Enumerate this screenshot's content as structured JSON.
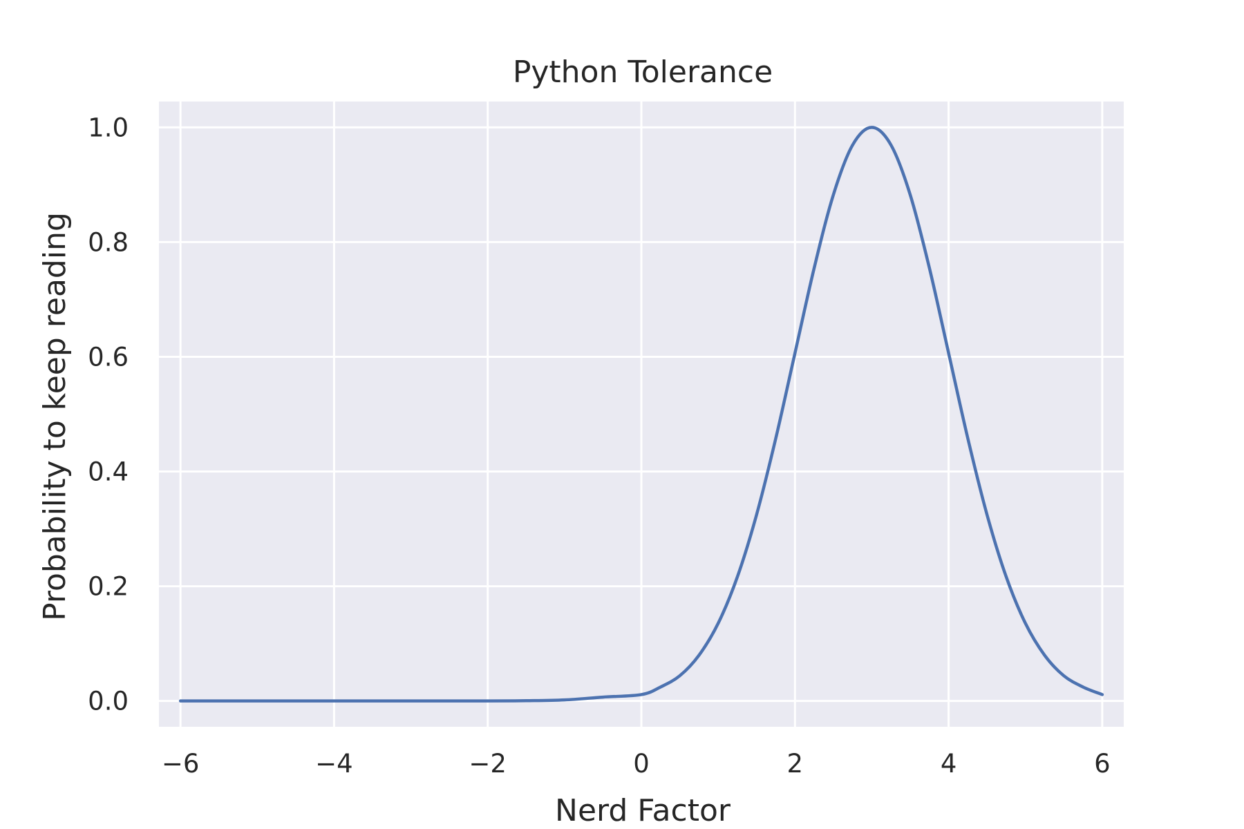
{
  "chart_data": {
    "type": "line",
    "title": "Python Tolerance",
    "xlabel": "Nerd Factor",
    "ylabel": "Probability to keep reading",
    "xlim": [
      -6.28,
      6.28
    ],
    "ylim": [
      -0.045,
      1.045
    ],
    "xticks": [
      -6,
      -4,
      -2,
      0,
      2,
      4,
      6
    ],
    "xtick_labels": [
      "−6",
      "−4",
      "−2",
      "0",
      "2",
      "4",
      "6"
    ],
    "yticks": [
      0.0,
      0.2,
      0.4,
      0.6,
      0.8,
      1.0
    ],
    "ytick_labels": [
      "0.0",
      "0.2",
      "0.4",
      "0.6",
      "0.8",
      "1.0"
    ],
    "grid": true,
    "background_color": "#eaeaf2",
    "grid_color": "#ffffff",
    "series": [
      {
        "color": "#4c72b0",
        "x": [
          -6,
          -5,
          -4,
          -3,
          -2,
          -1.5,
          -1,
          -0.5,
          0,
          0.25,
          0.5,
          0.75,
          1,
          1.25,
          1.5,
          1.75,
          2,
          2.25,
          2.5,
          2.75,
          3,
          3.25,
          3.5,
          3.75,
          4,
          4.25,
          4.5,
          4.75,
          5,
          5.25,
          5.5,
          5.75,
          6
        ],
        "values": [
          0.0,
          0.0,
          0.0,
          0.0,
          0.0,
          0.0004,
          0.0018,
          0.0067,
          0.0111,
          0.0243,
          0.0439,
          0.0796,
          0.1353,
          0.2163,
          0.3247,
          0.4578,
          0.6065,
          0.7548,
          0.8825,
          0.9692,
          1.0,
          0.9692,
          0.8825,
          0.7548,
          0.6065,
          0.4578,
          0.3247,
          0.2163,
          0.1353,
          0.0796,
          0.0439,
          0.0243,
          0.0111
        ]
      }
    ]
  }
}
